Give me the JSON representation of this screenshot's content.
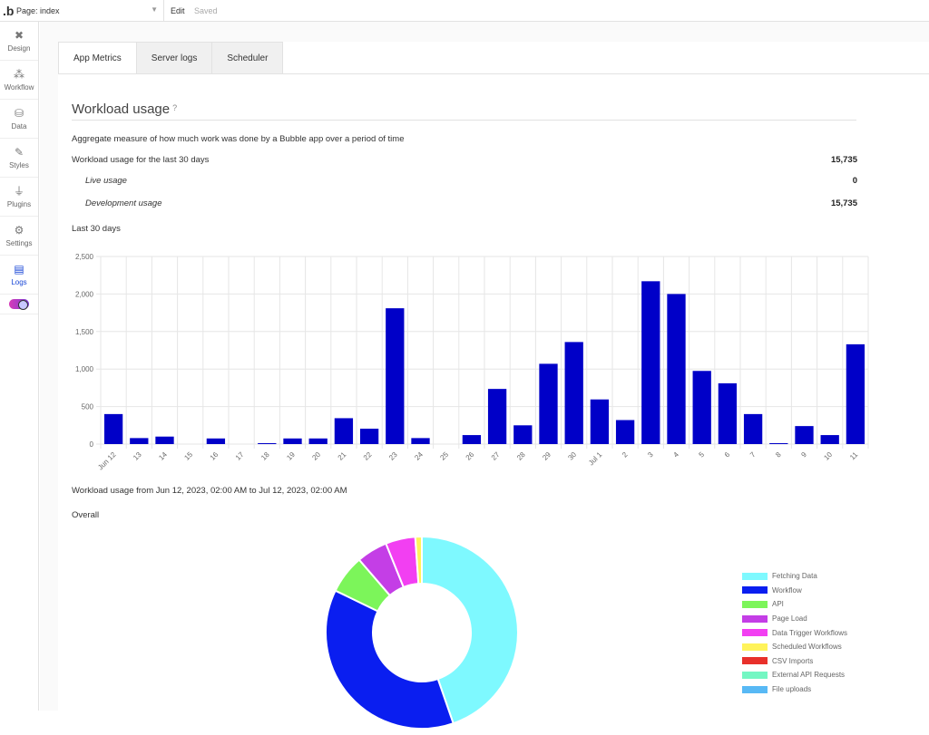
{
  "app": {
    "logo": ".b",
    "page_select": "Page: index",
    "edit_label": "Edit",
    "saved_label": "Saved"
  },
  "sidebar": {
    "items": [
      {
        "label": "Design",
        "icon": "design-icon"
      },
      {
        "label": "Workflow",
        "icon": "workflow-icon"
      },
      {
        "label": "Data",
        "icon": "data-icon"
      },
      {
        "label": "Styles",
        "icon": "styles-icon"
      },
      {
        "label": "Plugins",
        "icon": "plugins-icon"
      },
      {
        "label": "Settings",
        "icon": "gear-icon"
      },
      {
        "label": "Logs",
        "icon": "logs-icon"
      }
    ]
  },
  "tabs": [
    {
      "label": "App Metrics"
    },
    {
      "label": "Server logs"
    },
    {
      "label": "Scheduler"
    }
  ],
  "workload": {
    "title": "Workload usage",
    "help": "?",
    "description": "Aggregate measure of how much work was done by a Bubble app over a period of time",
    "total_label": "Workload usage for the last 30 days",
    "total_value": "15,735",
    "live_label": "Live usage",
    "live_value": "0",
    "dev_label": "Development usage",
    "dev_value": "15,735",
    "last30": "Last 30 days",
    "range": "Workload usage from Jun 12, 2023, 02:00 AM to Jul 12, 2023, 02:00 AM",
    "overall": "Overall"
  },
  "chart_data": [
    {
      "type": "bar",
      "categories": [
        "Jun 12",
        "13",
        "14",
        "15",
        "16",
        "17",
        "18",
        "19",
        "20",
        "21",
        "22",
        "23",
        "24",
        "25",
        "26",
        "27",
        "28",
        "29",
        "30",
        "Jul 1",
        "2",
        "3",
        "4",
        "5",
        "6",
        "7",
        "8",
        "9",
        "10",
        "11"
      ],
      "values": [
        400,
        80,
        100,
        0,
        75,
        0,
        10,
        75,
        75,
        345,
        205,
        1810,
        80,
        0,
        120,
        735,
        250,
        1070,
        1360,
        595,
        320,
        2170,
        2000,
        975,
        810,
        400,
        10,
        240,
        120,
        1330
      ],
      "ylim": [
        0,
        2500
      ],
      "yticks": [
        0,
        500,
        1000,
        1500,
        2000,
        2500
      ],
      "ytick_labels": [
        "0",
        "500",
        "1,000",
        "1,500",
        "2,000",
        "2,500"
      ],
      "color": "#0000c8",
      "grid": true
    },
    {
      "type": "pie",
      "labels": [
        "Fetching Data",
        "Workflow",
        "API",
        "Page Load",
        "Data Trigger Workflows",
        "Scheduled Workflows",
        "CSV Imports",
        "External API Requests",
        "File uploads"
      ],
      "values": [
        44.7,
        37.5,
        6.5,
        5.2,
        5.0,
        1.1,
        0,
        0,
        0
      ],
      "colors": [
        "#7ef9ff",
        "#0a1ef0",
        "#7cf55a",
        "#c43ee6",
        "#f23ff2",
        "#fff35a",
        "#e8302b",
        "#74f7c3",
        "#58b9f5"
      ],
      "legend_position": "right"
    }
  ]
}
